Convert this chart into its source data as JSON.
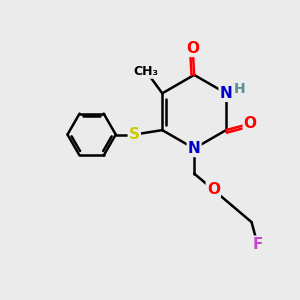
{
  "bg_color": "#ebebeb",
  "atom_colors": {
    "C": "#000000",
    "N": "#0000cc",
    "O": "#ff0000",
    "S": "#cccc00",
    "F": "#cc44cc",
    "H": "#5a9090"
  },
  "bond_color": "#000000",
  "bond_width": 1.8,
  "font_size": 11,
  "fig_size": [
    3.0,
    3.0
  ],
  "dpi": 100,
  "xlim": [
    0,
    10
  ],
  "ylim": [
    0,
    10
  ]
}
